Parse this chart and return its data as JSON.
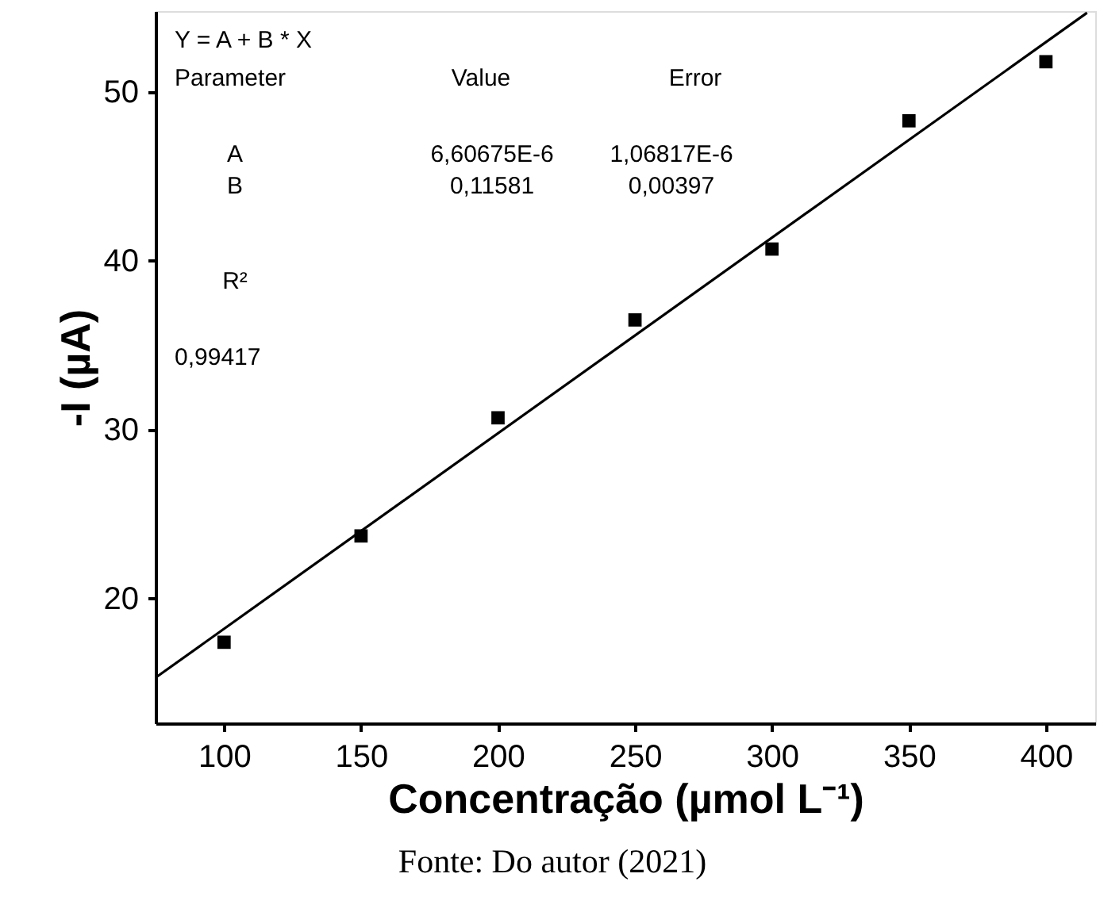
{
  "chart_data": {
    "type": "scatter",
    "xlabel": "Concentração (µmol L⁻¹)",
    "ylabel": "-I (µA)",
    "xlim": [
      75,
      418
    ],
    "ylim": [
      12.6,
      54.8
    ],
    "xticks": [
      100,
      150,
      200,
      250,
      300,
      350,
      400
    ],
    "yticks": [
      20,
      30,
      40,
      50
    ],
    "grid": false,
    "series": [
      {
        "type": "scatter",
        "marker": "square",
        "color": "#000000",
        "x": [
          100,
          150,
          200,
          250,
          300,
          350,
          400
        ],
        "values": [
          17.4,
          23.7,
          30.7,
          36.5,
          40.7,
          48.3,
          51.8
        ]
      },
      {
        "type": "line",
        "marker": "none",
        "color": "#000000",
        "line_style": "solid",
        "x": [
          75,
          415
        ],
        "values": [
          15.3,
          54.7
        ]
      }
    ],
    "annotations": [
      "Y = A + B * X",
      "Parameter",
      "Value",
      "Error",
      "A",
      "6,60675E-6",
      "1,06817E-6",
      "B",
      "0,11581",
      "0,00397",
      "R²",
      "0,99417",
      "Fonte: Do autor (2021)"
    ]
  }
}
